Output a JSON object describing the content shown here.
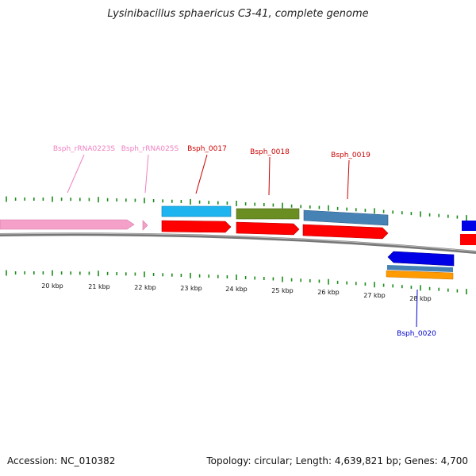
{
  "title": "Lysinibacillus sphaericus C3-41, complete genome",
  "footer": {
    "accession": "Accession: NC_010382",
    "summary": "Topology: circular; Length: 4,639,821 bp; Genes: 4,700"
  },
  "scale_labels": [
    "20 kbp",
    "21 kbp",
    "22 kbp",
    "23 kbp",
    "24 kbp",
    "25 kbp",
    "26 kbp",
    "27 kbp",
    "28 kbp"
  ],
  "gene_labels": [
    "Bsph_rRNA0223S",
    "Bsph_rRNA025S",
    "Bsph_0017",
    "Bsph_0018",
    "Bsph_0019",
    "Bsph_0020"
  ],
  "colors": {
    "rrna": "#f5a0c8",
    "cds": "#ff0000",
    "gene_cyan": "#1eb4f0",
    "gene_olive": "#6b8e23",
    "gene_steel": "#4682b4",
    "gene_blue": "#0000e6",
    "gene_orange": "#ff9a00",
    "tick": "#1a8a1a",
    "label_red": "#cc0000",
    "label_pink": "#f080c0",
    "label_blue": "#0000cc"
  }
}
